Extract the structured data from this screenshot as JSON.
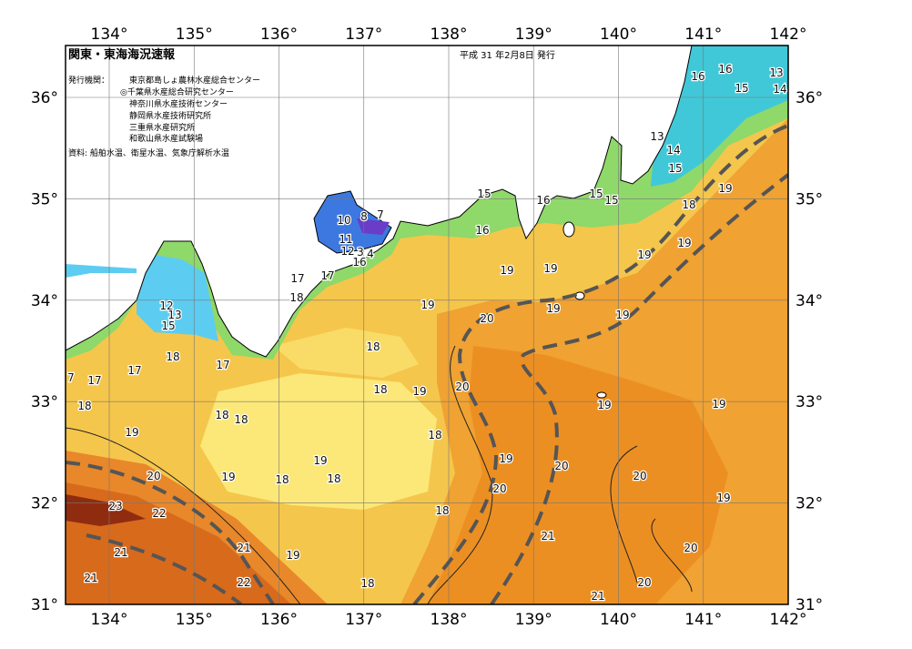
{
  "header": {
    "title": "関東・東海海況速報",
    "issue_date": "平成 31 年2月8日 発行",
    "issuers_label": "発行機関：",
    "issuers": [
      "東京都島しょ農林水産総合センター",
      "◎千葉県水産総合研究センター",
      "神奈川県水産技術センター",
      "静岡県水産技術研究所",
      "三重県水産研究所",
      "和歌山県水産試験場"
    ],
    "sources": "資料: 船舶水温、衛星水温、気象庁解析水温"
  },
  "axes": {
    "lon_labels": [
      "134°",
      "135°",
      "136°",
      "137°",
      "138°",
      "139°",
      "140°",
      "141°",
      "142°"
    ],
    "lat_labels": [
      "36°",
      "35°",
      "34°",
      "33°",
      "32°",
      "31°"
    ]
  },
  "contour_labels": [
    16,
    16,
    13,
    15,
    14,
    13,
    14,
    15,
    18,
    19,
    19,
    19,
    15,
    16,
    15,
    15,
    16,
    19,
    19,
    19,
    19,
    20,
    19,
    10,
    8,
    7,
    11,
    12,
    3,
    4,
    16,
    17,
    17,
    18,
    12,
    13,
    15,
    18,
    18,
    17,
    17,
    7,
    17,
    18,
    19,
    20,
    18,
    19,
    19,
    18,
    18,
    19,
    18,
    19,
    18,
    19,
    20,
    20,
    20,
    19,
    18,
    20,
    19,
    23,
    22,
    18,
    21,
    21,
    21,
    19,
    20,
    21,
    22,
    18,
    20,
    21
  ]
}
